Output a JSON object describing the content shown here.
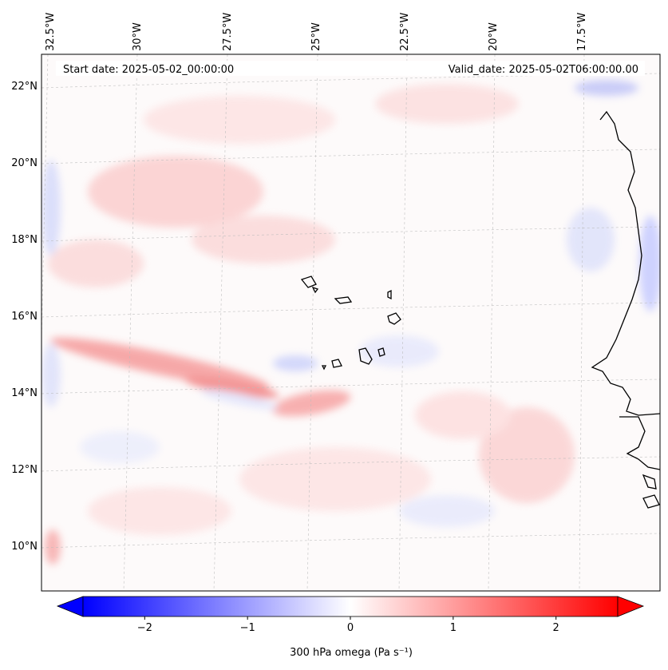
{
  "header": {
    "start_date": "Start date: 2025-05-02_00:00:00",
    "valid_date": "Valid_date: 2025-05-02T06:00:00.00"
  },
  "map": {
    "longitude_labels": [
      "32.5°W",
      "30°W",
      "27.5°W",
      "25°W",
      "22.5°W",
      "20°W",
      "17.5°W"
    ],
    "latitude_labels": [
      "22°N",
      "20°N",
      "18°N",
      "16°N",
      "14°N",
      "12°N",
      "10°N"
    ],
    "gridlines": true,
    "field": "300 hPa omega",
    "colors": {
      "negative": "#0000ff",
      "zero": "#ffffff",
      "positive": "#ff0000",
      "coastline": "#000000"
    }
  },
  "colorbar": {
    "ticks": [
      "−2",
      "−1",
      "0",
      "1",
      "2"
    ],
    "label": "300 hPa omega (Pa s⁻¹)",
    "range": [
      -2.6,
      2.6
    ],
    "extend": "both"
  }
}
